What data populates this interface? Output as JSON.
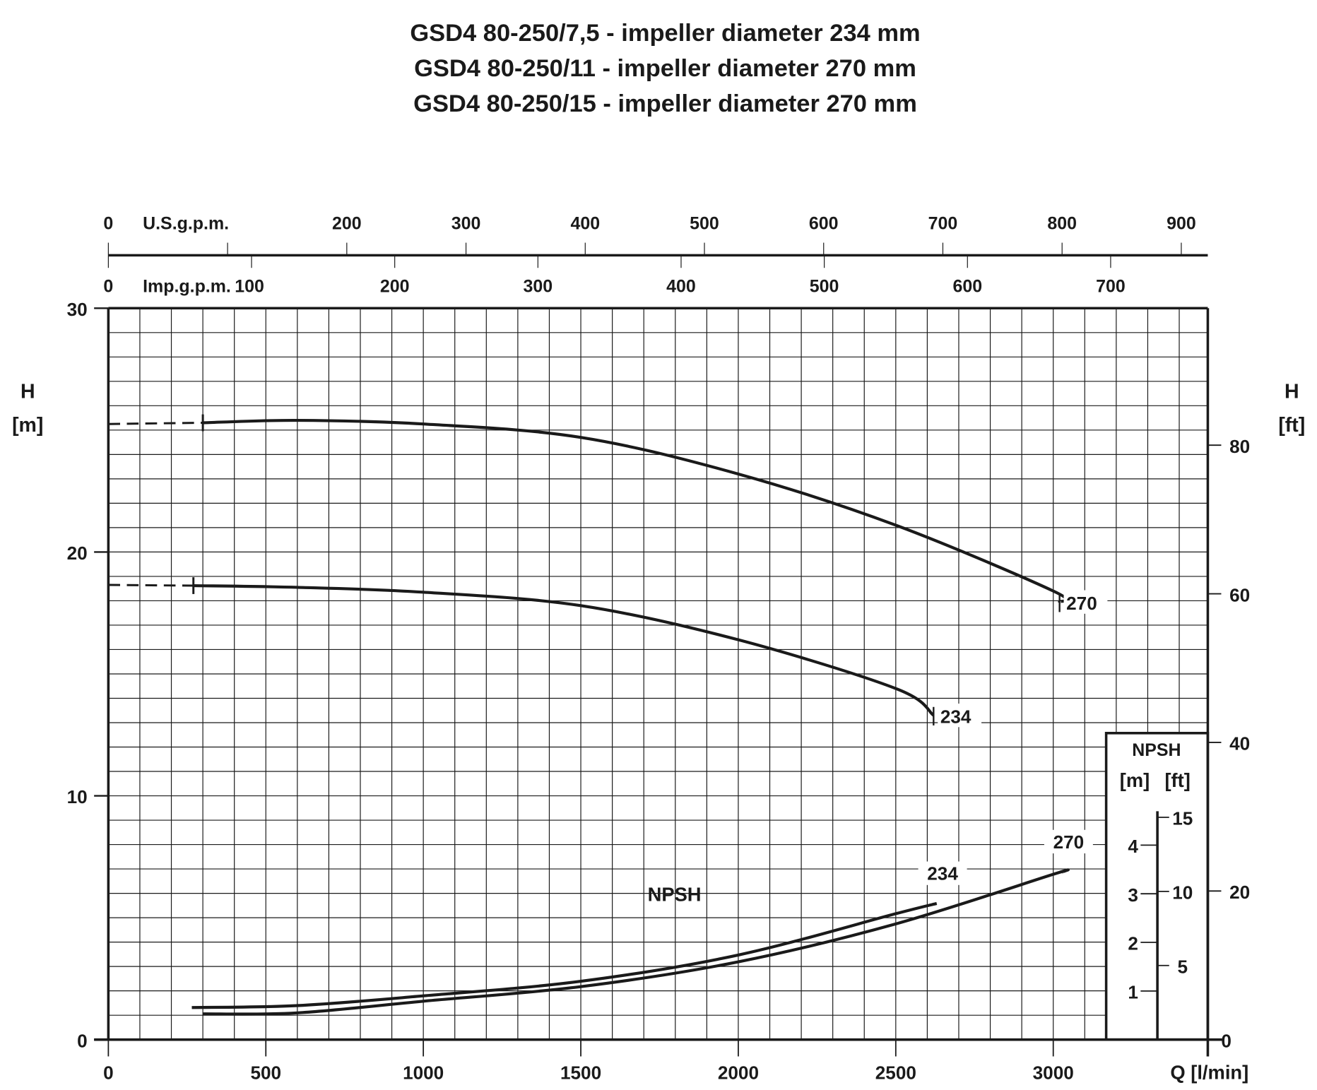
{
  "chart_data": {
    "type": "line",
    "title": [
      "GSD4 80-250/7,5 - impeller diameter 234 mm",
      "GSD4 80-250/11 - impeller diameter 270 mm",
      "GSD4 80-250/15 - impeller diameter 270 mm"
    ],
    "xlabel": "Q [l/min]",
    "ylabel_left": [
      "H",
      "[m]"
    ],
    "ylabel_right": [
      "H",
      "[ft]"
    ],
    "xlim": [
      0,
      3490
    ],
    "ylim": [
      0,
      30
    ],
    "x_ticks": [
      0,
      500,
      1000,
      1500,
      2000,
      2500,
      3000
    ],
    "y_ticks": [
      0,
      10,
      20,
      30
    ],
    "ft_ticks": [
      0,
      20,
      40,
      60,
      80
    ],
    "usgpm_axis": {
      "label": "U.S.g.p.m.",
      "ticks": [
        0,
        100,
        200,
        300,
        400,
        500,
        600,
        700,
        800,
        900
      ],
      "labels": [
        "0",
        "",
        "200",
        "300",
        "400",
        "500",
        "600",
        "700",
        "800",
        "900"
      ]
    },
    "impgpm_axis": {
      "label": "Imp.g.p.m.",
      "ticks": [
        0,
        100,
        200,
        300,
        400,
        500,
        600,
        700
      ],
      "labels": [
        "0",
        "100",
        "200",
        "300",
        "400",
        "500",
        "600",
        "700"
      ]
    },
    "grid": true,
    "npsh_panel": {
      "title": "NPSH",
      "units": [
        "[m]",
        "[ft]"
      ],
      "m_ticks": [
        1,
        2,
        3,
        4
      ],
      "ft_ticks": [
        5,
        10,
        15
      ]
    },
    "npsh_label": "NPSH",
    "head_series": [
      {
        "name": "270",
        "shutoff": 25.25,
        "dash_end_q": 300,
        "points": [
          [
            300,
            25.3
          ],
          [
            600,
            25.4
          ],
          [
            1000,
            25.25
          ],
          [
            1500,
            24.7
          ],
          [
            2000,
            23.2
          ],
          [
            2500,
            21.1
          ],
          [
            3000,
            18.4
          ],
          [
            3020,
            17.95
          ]
        ]
      },
      {
        "name": "234",
        "shutoff": 18.65,
        "dash_end_q": 270,
        "points": [
          [
            270,
            18.62
          ],
          [
            600,
            18.55
          ],
          [
            1000,
            18.35
          ],
          [
            1500,
            17.8
          ],
          [
            2000,
            16.4
          ],
          [
            2500,
            14.4
          ],
          [
            2620,
            13.3
          ]
        ]
      }
    ],
    "npsh_series": [
      {
        "name": "270",
        "points": [
          [
            300,
            0.53
          ],
          [
            600,
            0.55
          ],
          [
            1000,
            0.79
          ],
          [
            1500,
            1.09
          ],
          [
            2000,
            1.6
          ],
          [
            2500,
            2.38
          ],
          [
            3000,
            3.4
          ],
          [
            3030,
            3.45
          ]
        ]
      },
      {
        "name": "234",
        "points": [
          [
            265,
            0.66
          ],
          [
            600,
            0.7
          ],
          [
            1000,
            0.9
          ],
          [
            1500,
            1.2
          ],
          [
            2000,
            1.74
          ],
          [
            2500,
            2.59
          ],
          [
            2630,
            2.8
          ]
        ]
      }
    ]
  }
}
